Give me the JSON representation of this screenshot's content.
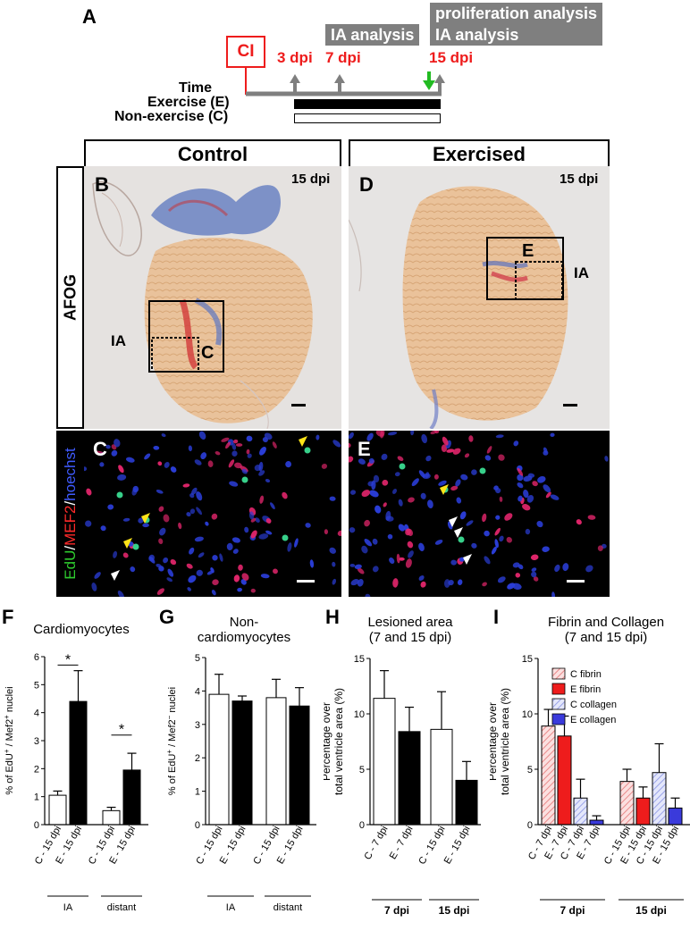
{
  "panel_letters": {
    "A": "A",
    "B": "B",
    "C": "C",
    "D": "D",
    "E": "E",
    "F": "F",
    "G": "G",
    "H": "H",
    "I": "I"
  },
  "timeline": {
    "ci_label": "CI",
    "dpi_3": "3 dpi",
    "dpi_7": "7 dpi",
    "dpi_15": "15 dpi",
    "ia_analysis_box": "IA analysis",
    "proliferation_box_line1": "proliferation analysis",
    "proliferation_box_line2": "IA analysis",
    "time_label": "Time",
    "exercise_label": "Exercise (E)",
    "nonexercise_label": "Non-exercise (C)"
  },
  "headers": {
    "control": "Control",
    "exercised": "Exercised"
  },
  "side_labels": {
    "afog": "AFOG",
    "stain_edu": "EdU",
    "stain_sep1": "/",
    "stain_mef2": "MEF2",
    "stain_sep2": "/",
    "stain_hoechst": "hoechst"
  },
  "micro_labels": {
    "b_dpi": "15 dpi",
    "d_dpi": "15 dpi",
    "b_ia": "IA",
    "d_ia": "IA",
    "b_inset": "C",
    "d_inset": "E",
    "c_letter": "C",
    "e_letter": "E"
  },
  "colors": {
    "red_text": "#ee1c1c",
    "gray_box": "#7f7f7f",
    "green_arrow": "#22bb22",
    "c_fibrin": "#f4a6a6",
    "e_fibrin": "#ee1c1c",
    "c_collagen": "#c3c8f2",
    "e_collagen": "#3a3adb"
  },
  "chart_data": [
    {
      "id": "F",
      "type": "bar",
      "title": "Cardiomyocytes",
      "ylabel_parts": [
        "% of EdU",
        "+",
        " / Mef2",
        "+",
        " nuclei"
      ],
      "ylim": [
        0,
        6
      ],
      "yticks": [
        0,
        1,
        2,
        3,
        4,
        5,
        6
      ],
      "categories": [
        "C - 15 dpi",
        "E - 15 dpi",
        "C - 15 dpi",
        "E - 15 dpi"
      ],
      "values": [
        1.05,
        4.4,
        0.5,
        1.95
      ],
      "errors": [
        0.15,
        1.1,
        0.12,
        0.6
      ],
      "fills": [
        "#ffffff",
        "#000000",
        "#ffffff",
        "#000000"
      ],
      "groups": [
        "IA",
        "distant"
      ],
      "significance": [
        "*",
        "*"
      ]
    },
    {
      "id": "G",
      "type": "bar",
      "title_line1": "Non-",
      "title_line2": "cardiomyocytes",
      "ylabel_parts": [
        "% of EdU",
        "+",
        " / Mef2",
        "−",
        " nuclei"
      ],
      "ylim": [
        0,
        5
      ],
      "yticks": [
        0,
        1,
        2,
        3,
        4,
        5
      ],
      "categories": [
        "C - 15 dpi",
        "E - 15 dpi",
        "C - 15 dpi",
        "E - 15 dpi"
      ],
      "values": [
        3.9,
        3.7,
        3.8,
        3.55
      ],
      "errors": [
        0.6,
        0.15,
        0.55,
        0.55
      ],
      "fills": [
        "#ffffff",
        "#000000",
        "#ffffff",
        "#000000"
      ],
      "groups": [
        "IA",
        "distant"
      ]
    },
    {
      "id": "H",
      "type": "bar",
      "title_line1": "Lesioned area",
      "title_line2": "(7 and 15 dpi)",
      "ylabel_line1": "Percentage over",
      "ylabel_line2": "total ventricle area (%)",
      "ylim": [
        0,
        15
      ],
      "yticks": [
        0,
        5,
        10,
        15
      ],
      "categories": [
        "C - 7 dpi",
        "E - 7 dpi",
        "C - 15 dpi",
        "E - 15 dpi"
      ],
      "values": [
        11.4,
        8.4,
        8.6,
        4.0
      ],
      "errors": [
        2.5,
        2.2,
        3.4,
        1.7
      ],
      "fills": [
        "#ffffff",
        "#000000",
        "#ffffff",
        "#000000"
      ],
      "groups": [
        "7 dpi",
        "15 dpi"
      ]
    },
    {
      "id": "I",
      "type": "bar",
      "title_line1": "Fibrin  and Collagen",
      "title_line2": "(7 and 15 dpi)",
      "ylabel_line1": "Percentage over",
      "ylabel_line2": "total ventricle area (%)",
      "ylim": [
        0,
        15
      ],
      "yticks": [
        0,
        5,
        10,
        15
      ],
      "categories": [
        "C - 7 dpi",
        "E - 7 dpi",
        "C - 7 dpi",
        "E - 7 dpi",
        "C - 15 dpi",
        "E - 15 dpi",
        "C - 15 dpi",
        "E - 15 dpi"
      ],
      "values": [
        8.9,
        8.0,
        2.4,
        0.4,
        3.9,
        2.4,
        4.7,
        1.5
      ],
      "errors": [
        1.5,
        1.8,
        1.7,
        0.4,
        1.1,
        1.0,
        2.6,
        0.9
      ],
      "series_kind": [
        "cf",
        "ef",
        "cc",
        "ec",
        "cf",
        "ef",
        "cc",
        "ec"
      ],
      "legend": [
        "C fibrin",
        "E fibrin",
        "C collagen",
        "E collagen"
      ],
      "groups": [
        "7 dpi",
        "15 dpi"
      ]
    }
  ]
}
